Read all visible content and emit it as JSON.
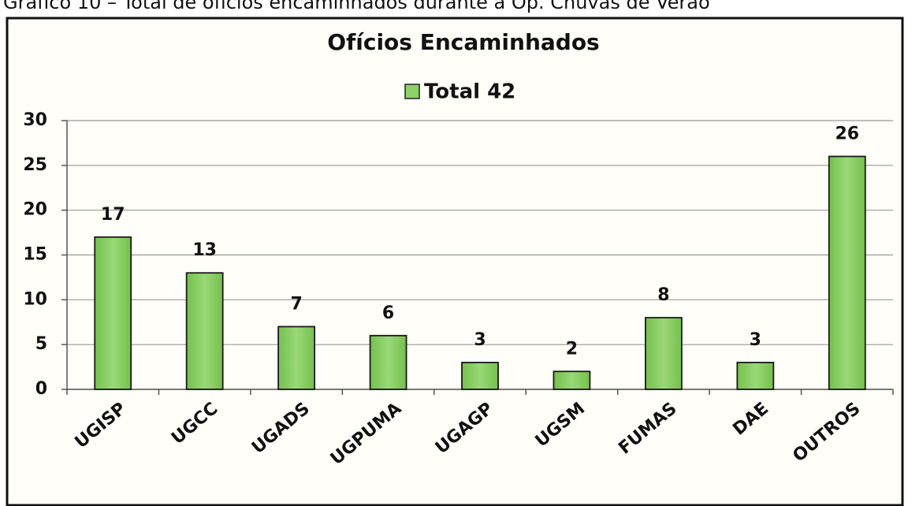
{
  "caption": "Gráfico 10 – Total de ofícios encaminhados durante a Op. Chuvas de Verão",
  "chart_data": {
    "type": "bar",
    "title": "Ofícios Encaminhados",
    "categories": [
      "UGISP",
      "UGCC",
      "UGADS",
      "UGPUMA",
      "UGAGP",
      "UGSM",
      "FUMAS",
      "DAE",
      "OUTROS"
    ],
    "series": [
      {
        "name": "Total 42",
        "color": "#8ed266",
        "values": [
          17,
          13,
          7,
          6,
          3,
          2,
          8,
          3,
          26
        ]
      }
    ],
    "ylim": [
      0,
      30
    ],
    "yticks": [
      0,
      5,
      10,
      15,
      20,
      25,
      30
    ],
    "grid": true,
    "legend": "top"
  }
}
